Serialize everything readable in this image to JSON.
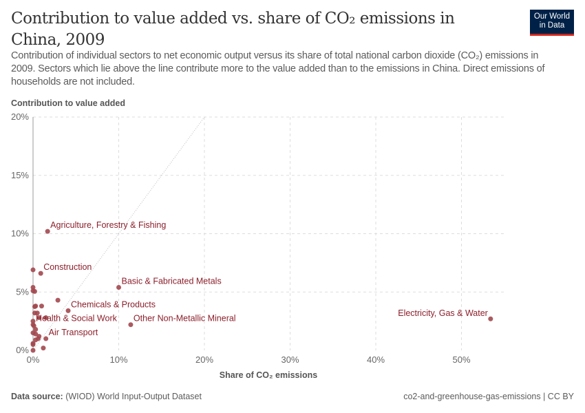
{
  "header": {
    "title": "Contribution to value added vs. share of CO₂ emissions in China, 2009",
    "subtitle": "Contribution of individual sectors to net economic output versus its share of total national carbon dioxide (CO₂) emissions in 2009. Sectors which lie above the line contribute more to the value added than to the emissions in China. Direct emissions of households are not included.",
    "logo": "Our World in Data"
  },
  "footer": {
    "source_label": "Data source:",
    "source": "(WIOD) World Input-Output Dataset",
    "right": "co2-and-greenhouse-gas-emissions | CC BY"
  },
  "chart_data": {
    "type": "scatter",
    "xlabel": "Share of CO₂ emissions",
    "ylabel": "Contribution to value added",
    "xlim": [
      -1,
      55
    ],
    "ylim": [
      0,
      20
    ],
    "xticks": [
      "0%",
      "10%",
      "20%",
      "30%",
      "40%",
      "50%"
    ],
    "xtick_values": [
      0,
      10,
      20,
      30,
      40,
      50
    ],
    "yticks": [
      "0%",
      "5%",
      "10%",
      "15%",
      "20%"
    ],
    "ytick_values": [
      0,
      5,
      10,
      15,
      20
    ],
    "grid": true,
    "reference_line": "y = x",
    "point_color": "#a2484f",
    "points": [
      {
        "label": "Agriculture, Forestry & Fishing",
        "x": 1.7,
        "y": 10.2
      },
      {
        "label": "Construction",
        "x": 0.9,
        "y": 6.6
      },
      {
        "label": "Basic & Fabricated Metals",
        "x": 10.0,
        "y": 5.4
      },
      {
        "label": "Chemicals & Products",
        "x": 4.1,
        "y": 3.4
      },
      {
        "label": "Other Non-Metallic Mineral",
        "x": 11.4,
        "y": 2.2
      },
      {
        "label": "Electricity, Gas & Water",
        "x": 53.4,
        "y": 2.7
      },
      {
        "label": "Health & Social Work",
        "x": 0.0,
        "y": 2.2
      },
      {
        "label": "Air Transport",
        "x": 1.5,
        "y": 1.0
      },
      {
        "label": "",
        "x": 0.0,
        "y": 6.9
      },
      {
        "label": "",
        "x": 2.9,
        "y": 4.3
      },
      {
        "label": "",
        "x": 0.0,
        "y": 5.4
      },
      {
        "label": "",
        "x": 0.0,
        "y": 5.1
      },
      {
        "label": "",
        "x": 0.2,
        "y": 5.05
      },
      {
        "label": "",
        "x": 0.3,
        "y": 3.8
      },
      {
        "label": "",
        "x": 1.0,
        "y": 3.8
      },
      {
        "label": "",
        "x": 0.2,
        "y": 3.75
      },
      {
        "label": "",
        "x": 0.2,
        "y": 3.2
      },
      {
        "label": "",
        "x": 0.5,
        "y": 3.2
      },
      {
        "label": "",
        "x": 0.7,
        "y": 2.8
      },
      {
        "label": "",
        "x": 1.5,
        "y": 2.8
      },
      {
        "label": "",
        "x": 0.0,
        "y": 2.5
      },
      {
        "label": "",
        "x": 0.1,
        "y": 2.1
      },
      {
        "label": "",
        "x": 0.3,
        "y": 1.8
      },
      {
        "label": "",
        "x": 0.7,
        "y": 1.2
      },
      {
        "label": "",
        "x": 0.0,
        "y": 1.5
      },
      {
        "label": "",
        "x": 0.3,
        "y": 1.4
      },
      {
        "label": "",
        "x": 0.6,
        "y": 1.0
      },
      {
        "label": "",
        "x": 0.0,
        "y": 0.6
      },
      {
        "label": "",
        "x": 0.3,
        "y": 0.9
      },
      {
        "label": "",
        "x": 0.0,
        "y": 0.5
      },
      {
        "label": "",
        "x": 1.2,
        "y": 0.2
      },
      {
        "label": "",
        "x": 0.0,
        "y": 0.0
      }
    ]
  }
}
